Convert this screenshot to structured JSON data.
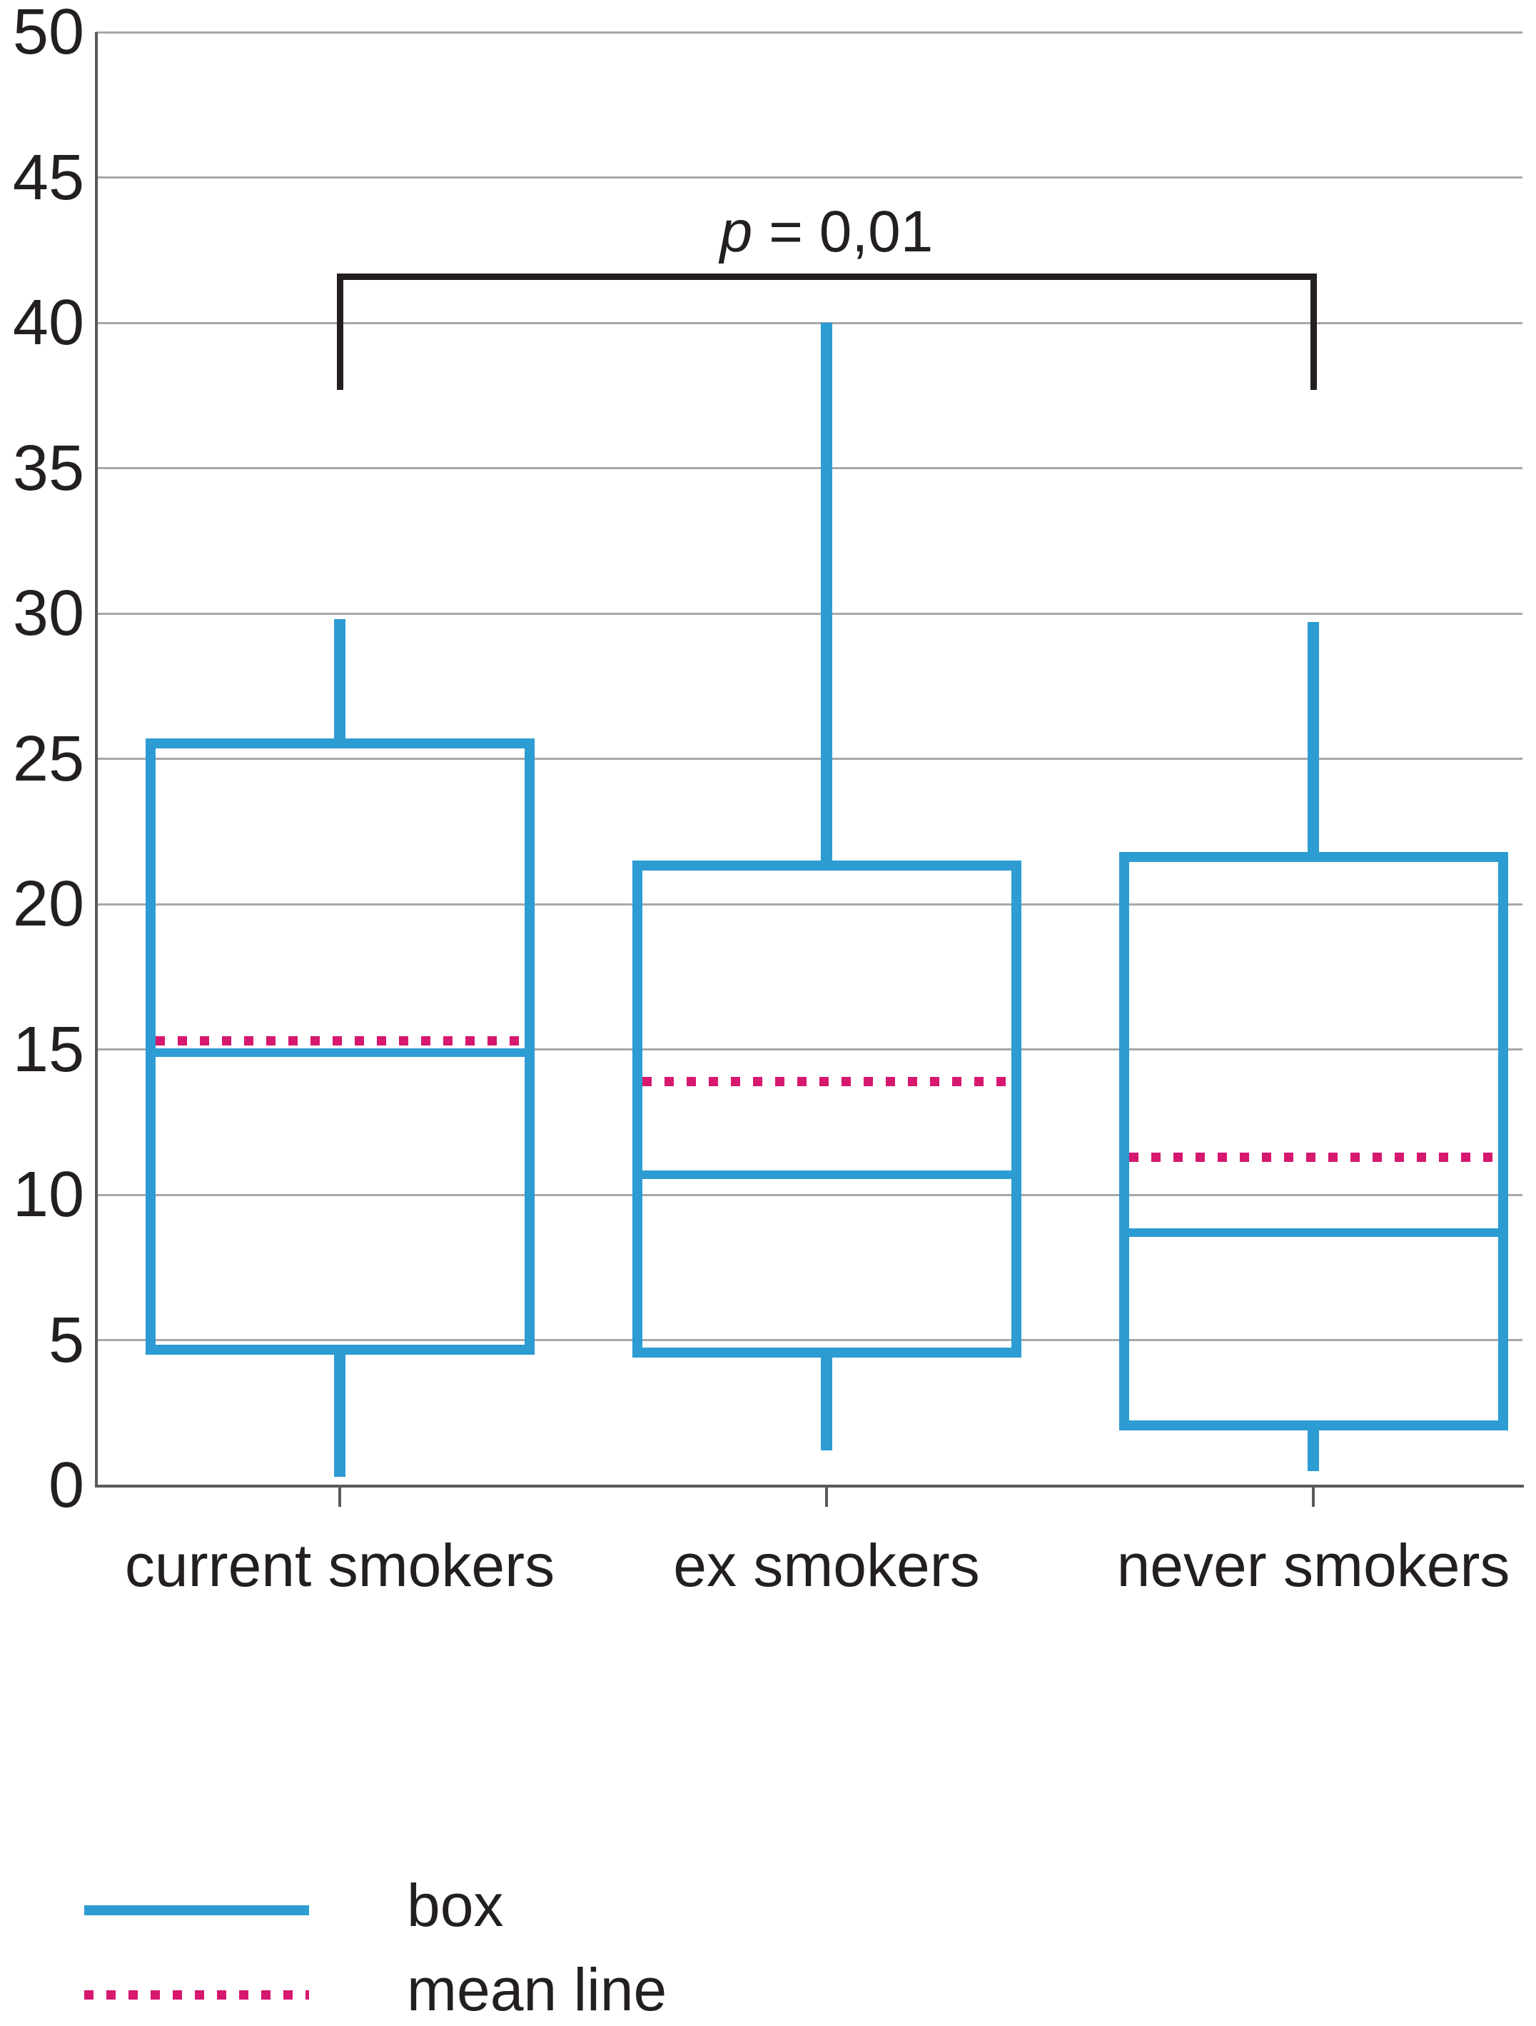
{
  "chart_data": {
    "type": "box",
    "title": "",
    "xlabel": "",
    "ylabel": "",
    "ylim": [
      0,
      50
    ],
    "yticks": [
      0,
      5,
      10,
      15,
      20,
      25,
      30,
      35,
      40,
      45,
      50
    ],
    "grid": true,
    "categories": [
      "current smokers",
      "ex smokers",
      "never smokers"
    ],
    "series": [
      {
        "name": "current smokers",
        "min": 0.3,
        "q1": 4.5,
        "median": 14.9,
        "mean": 15.3,
        "q3": 25.7,
        "max": 29.8
      },
      {
        "name": "ex smokers",
        "min": 1.2,
        "q1": 4.4,
        "median": 10.7,
        "mean": 13.9,
        "q3": 21.5,
        "max": 40.0
      },
      {
        "name": "never smokers",
        "min": 0.5,
        "q1": 1.9,
        "median": 8.7,
        "mean": 11.3,
        "q3": 21.8,
        "max": 29.7
      }
    ],
    "annotation": {
      "label": "p = 0,01",
      "symbol": "p",
      "rest": " = 0,01",
      "from_group": 0,
      "to_group": 2,
      "bar_value": 41.7,
      "tip_value": 37.7
    },
    "legend_position": "bottom-left",
    "colors": {
      "box": "#2d9cd2",
      "mean": "#d6186f",
      "grid": "#a7a7a9",
      "axis": "#59595b",
      "text": "#231f20",
      "bracket": "#231f20"
    }
  },
  "legend": {
    "items": [
      {
        "label": "box",
        "style": "solid"
      },
      {
        "label": "mean line",
        "style": "dotted"
      }
    ]
  }
}
